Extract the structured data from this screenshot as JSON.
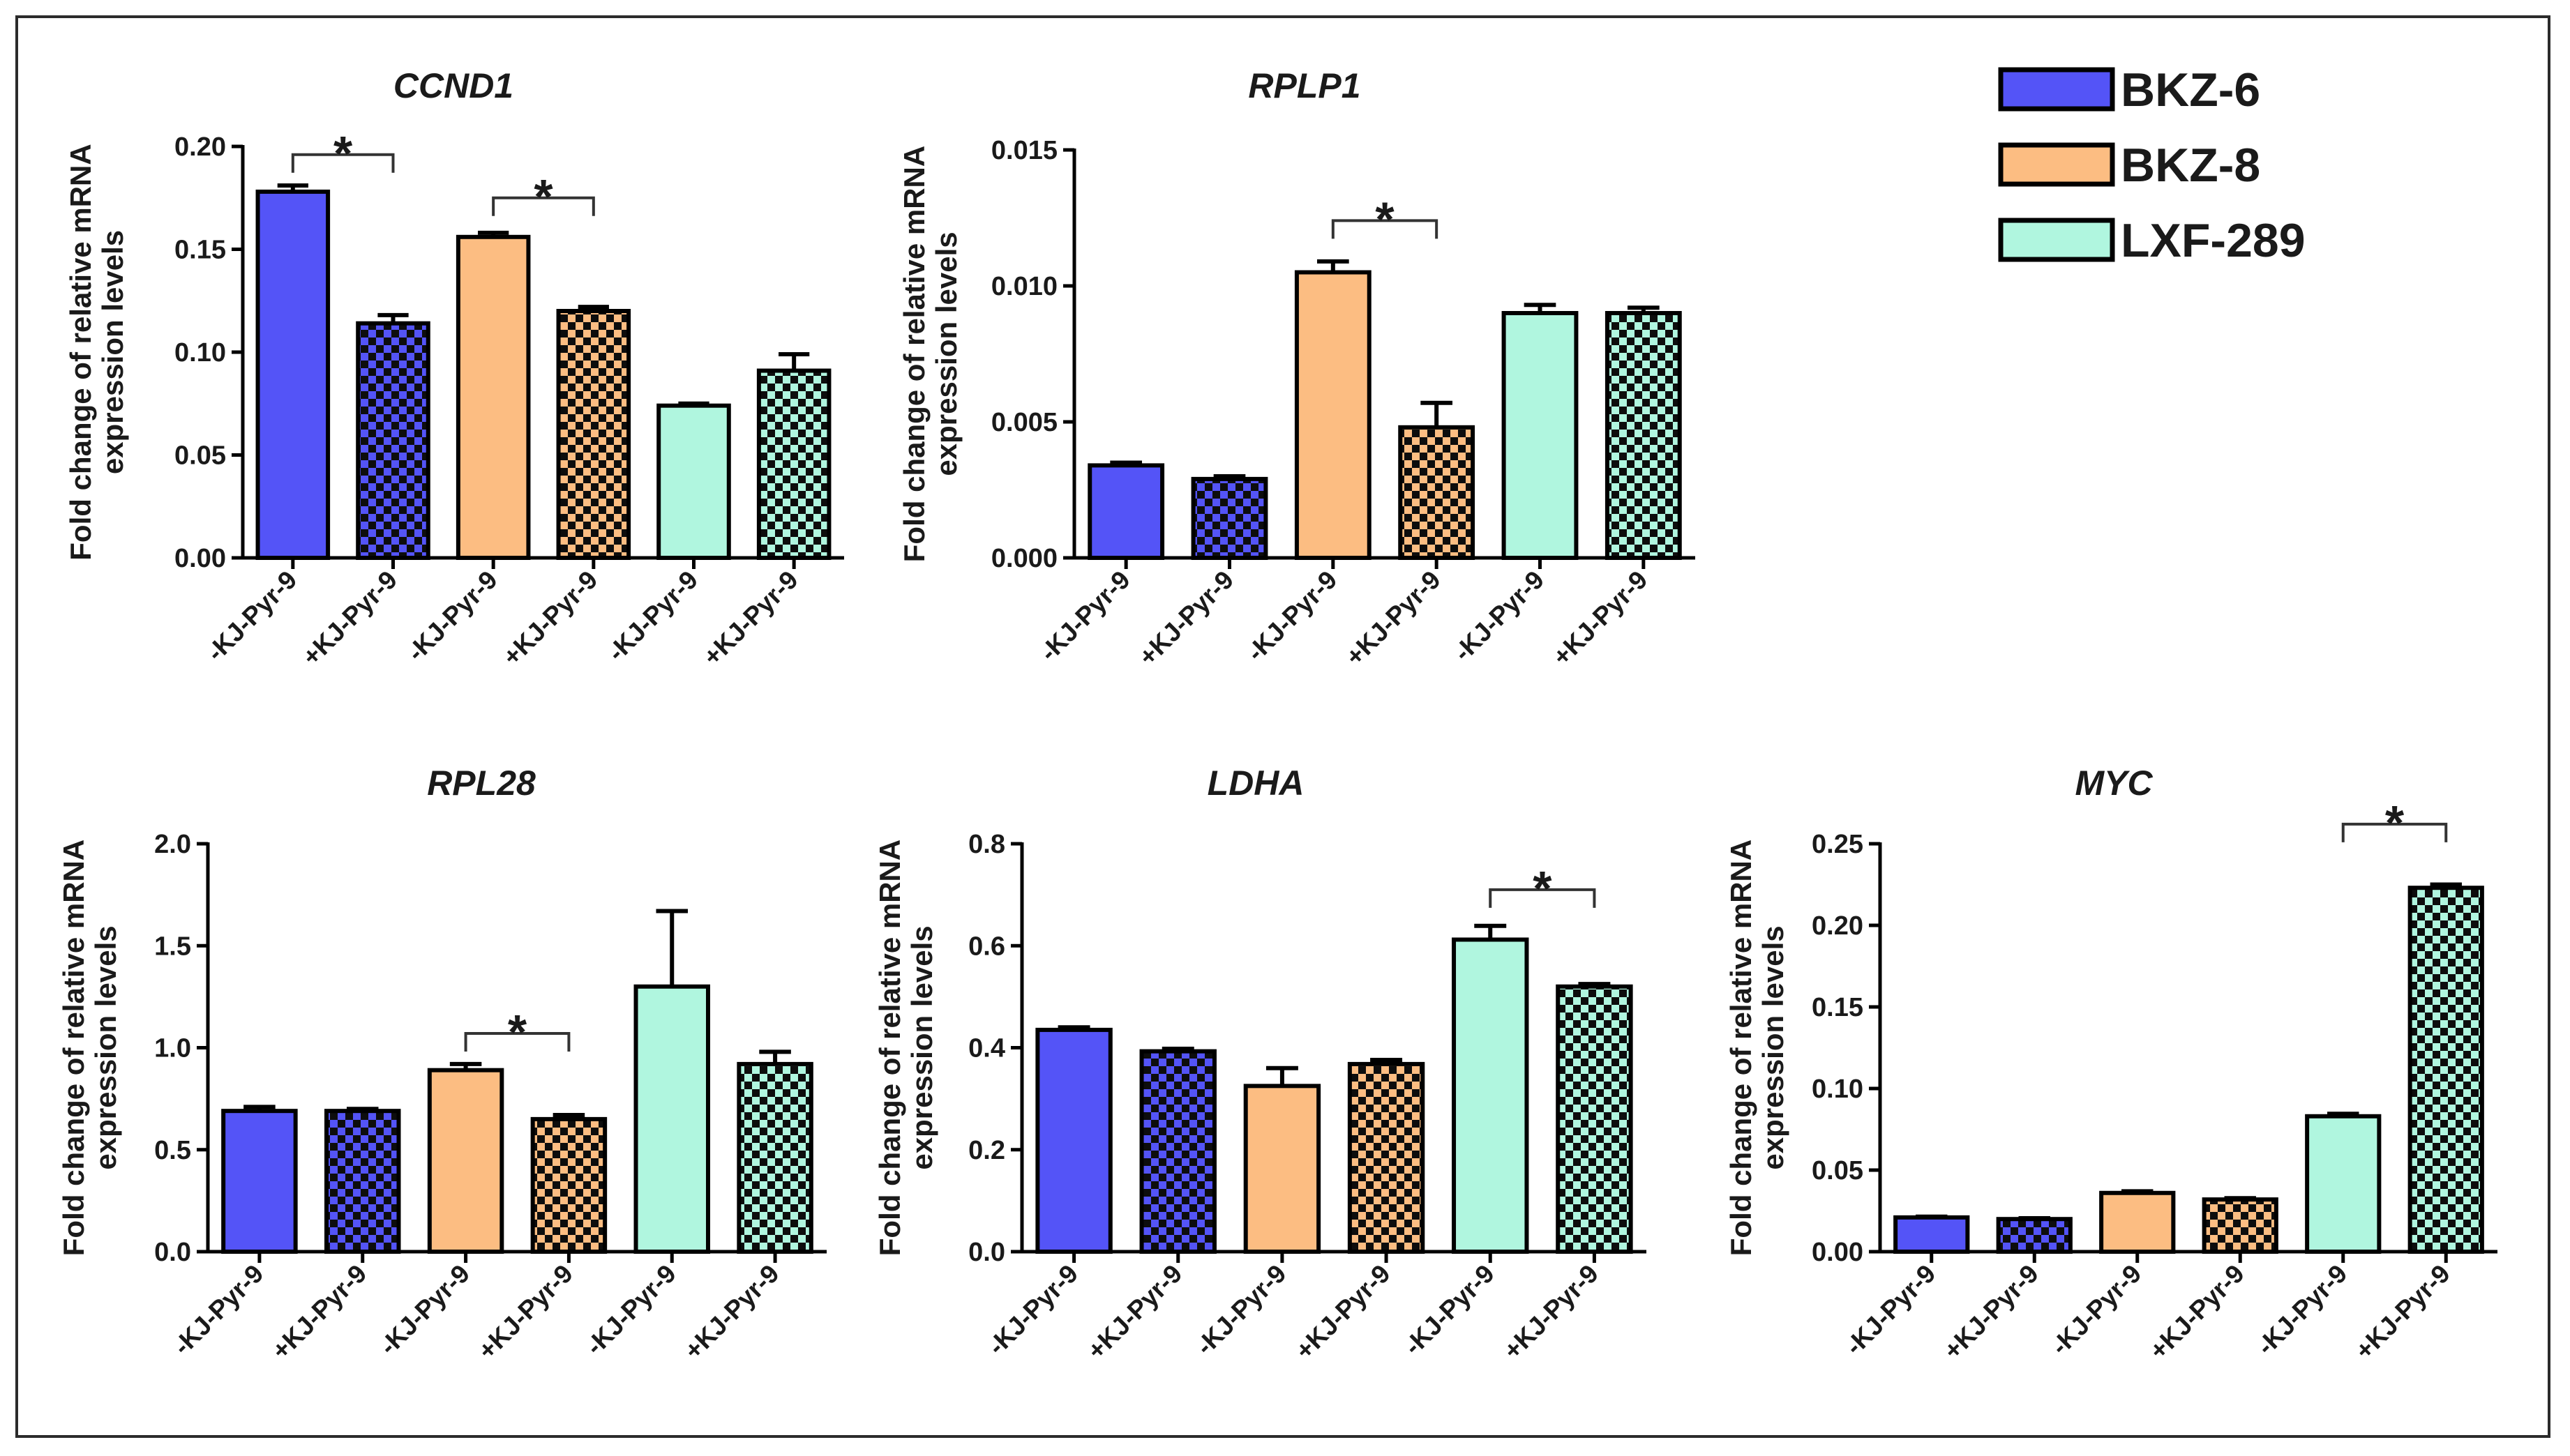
{
  "colors": {
    "bkz6": "#5454f7",
    "bkz8": "#fcbd82",
    "lxf289": "#b0f6df"
  },
  "legend": [
    {
      "label": "BKZ-6",
      "color": "#5454f7"
    },
    {
      "label": "BKZ-8",
      "color": "#fcbd82"
    },
    {
      "label": "LXF-289",
      "color": "#b0f6df"
    }
  ],
  "chart_data": [
    {
      "type": "bar",
      "title": "CCND1",
      "ylabel": [
        "Fold change of relative mRNA",
        "expression levels"
      ],
      "xlabel": "",
      "categories": [
        "-KJ-Pyr-9",
        "+KJ-Pyr-9",
        "-KJ-Pyr-9",
        "+KJ-Pyr-9",
        "-KJ-Pyr-9",
        "+KJ-Pyr-9"
      ],
      "groups": [
        "BKZ-6",
        "BKZ-6",
        "BKZ-8",
        "BKZ-8",
        "LXF-289",
        "LXF-289"
      ],
      "values": [
        0.178,
        0.114,
        0.156,
        0.12,
        0.074,
        0.091
      ],
      "errors": [
        0.003,
        0.004,
        0.002,
        0.002,
        0.001,
        0.008
      ],
      "ylim": [
        0,
        0.2
      ],
      "yticks": [
        "0.00",
        "0.05",
        "0.10",
        "0.15",
        "0.20"
      ],
      "significance": [
        {
          "from": 0,
          "to": 1,
          "label": "*",
          "level": 0.196
        },
        {
          "from": 2,
          "to": 3,
          "label": "*",
          "level": 0.175
        }
      ]
    },
    {
      "type": "bar",
      "title": "RPLP1",
      "ylabel": [
        "Fold change of relative mRNA",
        "expression levels"
      ],
      "xlabel": "",
      "categories": [
        "-KJ-Pyr-9",
        "+KJ-Pyr-9",
        "-KJ-Pyr-9",
        "+KJ-Pyr-9",
        "-KJ-Pyr-9",
        "+KJ-Pyr-9"
      ],
      "groups": [
        "BKZ-6",
        "BKZ-6",
        "BKZ-8",
        "BKZ-8",
        "LXF-289",
        "LXF-289"
      ],
      "values": [
        0.0034,
        0.0029,
        0.0105,
        0.0048,
        0.009,
        0.009
      ],
      "errors": [
        0.0001,
        0.0001,
        0.0004,
        0.0009,
        0.0003,
        0.0002
      ],
      "ylim": [
        0,
        0.015
      ],
      "yticks": [
        "0.000",
        "0.005",
        "0.010",
        "0.015"
      ],
      "significance": [
        {
          "from": 2,
          "to": 3,
          "label": "*",
          "level": 0.0124
        }
      ]
    },
    {
      "type": "bar",
      "title": "RPL28",
      "ylabel": [
        "Fold change of relative mRNA",
        "expression levels"
      ],
      "xlabel": "",
      "categories": [
        "-KJ-Pyr-9",
        "+KJ-Pyr-9",
        "-KJ-Pyr-9",
        "+KJ-Pyr-9",
        "-KJ-Pyr-9",
        "+KJ-Pyr-9"
      ],
      "groups": [
        "BKZ-6",
        "BKZ-6",
        "BKZ-8",
        "BKZ-8",
        "LXF-289",
        "LXF-289"
      ],
      "values": [
        0.69,
        0.69,
        0.89,
        0.65,
        1.3,
        0.92
      ],
      "errors": [
        0.02,
        0.01,
        0.03,
        0.02,
        0.37,
        0.06
      ],
      "ylim": [
        0,
        2.0
      ],
      "yticks": [
        "0.0",
        "0.5",
        "1.0",
        "1.5",
        "2.0"
      ],
      "significance": [
        {
          "from": 2,
          "to": 3,
          "label": "*",
          "level": 1.07
        }
      ]
    },
    {
      "type": "bar",
      "title": "LDHA",
      "ylabel": [
        "Fold change of relative mRNA",
        "expression levels"
      ],
      "xlabel": "",
      "categories": [
        "-KJ-Pyr-9",
        "+KJ-Pyr-9",
        "-KJ-Pyr-9",
        "+KJ-Pyr-9",
        "-KJ-Pyr-9",
        "+KJ-Pyr-9"
      ],
      "groups": [
        "BKZ-6",
        "BKZ-6",
        "BKZ-8",
        "BKZ-8",
        "LXF-289",
        "LXF-289"
      ],
      "values": [
        0.435,
        0.393,
        0.325,
        0.368,
        0.612,
        0.52
      ],
      "errors": [
        0.005,
        0.005,
        0.035,
        0.008,
        0.027,
        0.005
      ],
      "ylim": [
        0,
        0.8
      ],
      "yticks": [
        "0.0",
        "0.2",
        "0.4",
        "0.6",
        "0.8"
      ],
      "significance": [
        {
          "from": 4,
          "to": 5,
          "label": "*",
          "level": 0.71
        }
      ]
    },
    {
      "type": "bar",
      "title": "MYC",
      "ylabel": [
        "Fold change of relative mRNA",
        "expression levels"
      ],
      "xlabel": "",
      "categories": [
        "-KJ-Pyr-9",
        "+KJ-Pyr-9",
        "-KJ-Pyr-9",
        "+KJ-Pyr-9",
        "-KJ-Pyr-9",
        "+KJ-Pyr-9"
      ],
      "groups": [
        "BKZ-6",
        "BKZ-6",
        "BKZ-8",
        "BKZ-8",
        "LXF-289",
        "LXF-289"
      ],
      "values": [
        0.021,
        0.02,
        0.036,
        0.032,
        0.083,
        0.223
      ],
      "errors": [
        0.0005,
        0.0005,
        0.001,
        0.0008,
        0.0015,
        0.002
      ],
      "ylim": [
        0,
        0.25
      ],
      "yticks": [
        "0.00",
        "0.05",
        "0.10",
        "0.15",
        "0.20",
        "0.25"
      ],
      "significance": [
        {
          "from": 4,
          "to": 5,
          "label": "*",
          "level": 0.262
        }
      ]
    }
  ]
}
